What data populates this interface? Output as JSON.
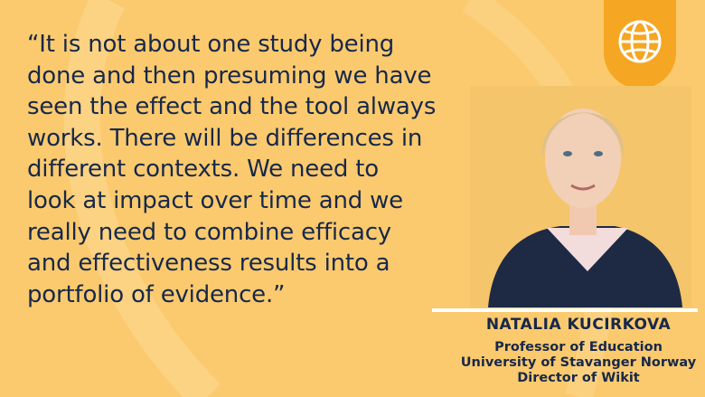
{
  "quote": {
    "lines": [
      "“It is not about one study being",
      "done and then presuming we have",
      "seen the effect and the tool always",
      "works. There will be differences in",
      "different contexts. We need to",
      "look at impact over time and we",
      "really need to combine efficacy",
      "and effectiveness results into a",
      "portfolio of evidence.”"
    ]
  },
  "speaker": {
    "name": "NATALIA KUCIRKOVA",
    "roles": [
      "Professor of Education",
      "University of Stavanger Norway",
      "Director of Wikit"
    ]
  }
}
